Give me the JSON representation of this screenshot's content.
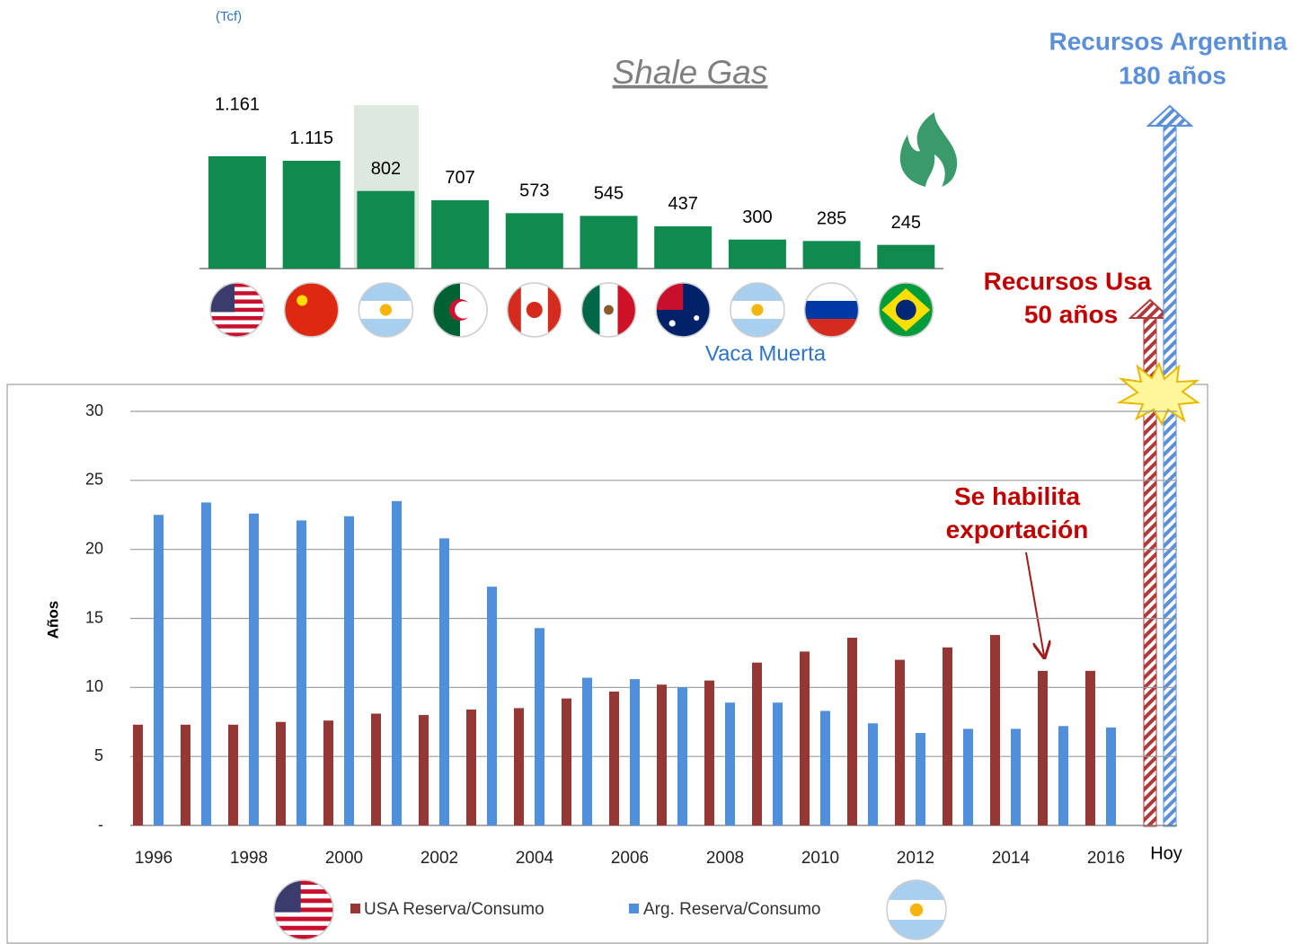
{
  "chart_data": [
    {
      "type": "bar",
      "title": "Shale Gas",
      "unit": "(Tcf)",
      "annotation": "Vaca Muerta",
      "color": "#118a4f",
      "categories": [
        null,
        null,
        null,
        null,
        null,
        null,
        null,
        null,
        null,
        null
      ],
      "values": [
        1161,
        1115,
        802,
        707,
        573,
        545,
        437,
        300,
        285,
        245
      ],
      "value_labels": [
        "1.161",
        "1.115",
        "802",
        "707",
        "573",
        "545",
        "437",
        "300",
        "285",
        "245"
      ]
    },
    {
      "type": "bar",
      "ylabel": "Años",
      "categories": [
        "1996",
        null,
        "1998",
        null,
        "2000",
        null,
        "2002",
        null,
        "2004",
        null,
        "2006",
        null,
        "2008",
        null,
        "2010",
        null,
        "2012",
        null,
        "2014",
        null,
        "2016"
      ],
      "series": [
        {
          "name": "USA Reserva/Consumo",
          "color": "#953735",
          "values": [
            7.3,
            7.3,
            7.3,
            7.5,
            7.6,
            8.1,
            8.0,
            8.4,
            8.5,
            9.2,
            9.7,
            10.2,
            10.5,
            11.8,
            12.6,
            13.6,
            12.0,
            12.9,
            13.8,
            11.2,
            11.2
          ]
        },
        {
          "name": "Arg. Reserva/Consumo",
          "color": "#4f8fdc",
          "values": [
            22.5,
            23.4,
            22.6,
            22.1,
            22.4,
            23.5,
            20.8,
            17.3,
            14.3,
            10.7,
            10.6,
            10.0,
            8.9,
            8.9,
            8.3,
            7.4,
            6.7,
            7.0,
            7.0,
            7.2,
            7.1
          ]
        }
      ],
      "ylim": [
        0,
        30
      ],
      "yticks": [
        {
          "value": 0,
          "label": "-"
        },
        5,
        10,
        15,
        20,
        25,
        30
      ],
      "grid": true,
      "annotations": [
        "Se habilita exportación",
        "Recursos Usa",
        "50 años",
        "Recursos Argentina",
        "180 años",
        "Hoy"
      ]
    }
  ]
}
